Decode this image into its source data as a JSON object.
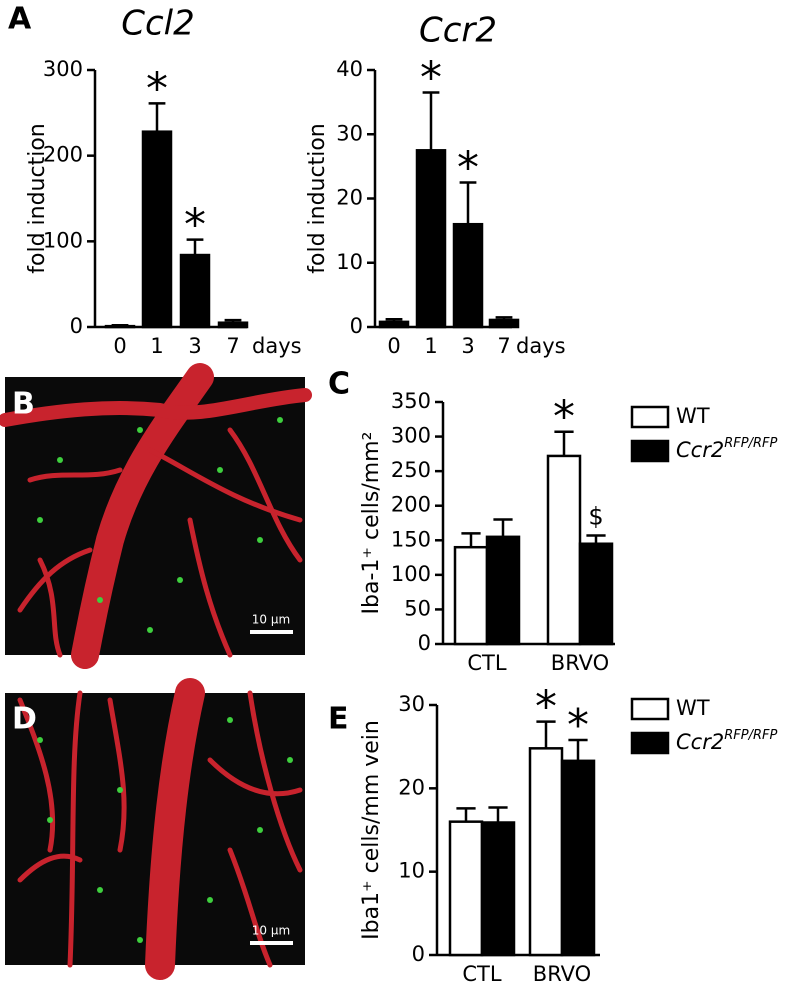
{
  "chart_data": [
    {
      "type": "bar",
      "panel_label": "A",
      "title": "Ccl2",
      "y_label": "fold induction",
      "x_label": "days",
      "categories": [
        "0",
        "1",
        "3",
        "7"
      ],
      "values": [
        1,
        228,
        84,
        5
      ],
      "errors": [
        1,
        33,
        18,
        3
      ],
      "color": "#000000",
      "markers": [
        null,
        "*",
        "*",
        null
      ],
      "ylim": [
        0,
        300
      ],
      "yticks": [
        0,
        100,
        200,
        300
      ]
    },
    {
      "type": "bar",
      "title": "Ccr2",
      "y_label": "fold induction",
      "x_label": "days",
      "categories": [
        "0",
        "1",
        "3",
        "7"
      ],
      "values": [
        0.8,
        27.5,
        16,
        1.1
      ],
      "errors": [
        0.4,
        9,
        6.5,
        0.4
      ],
      "color": "#000000",
      "markers": [
        null,
        "*",
        "*",
        null
      ],
      "ylim": [
        0,
        40
      ],
      "yticks": [
        0,
        10,
        20,
        30,
        40
      ]
    },
    {
      "type": "grouped_bar",
      "panel_label": "C",
      "y_label": "Iba-1⁺ cells/mm²",
      "categories": [
        "CTL",
        "BRVO"
      ],
      "series": [
        {
          "name": "WT",
          "color": "#ffffff",
          "values": [
            140,
            272
          ],
          "errors": [
            20,
            35
          ],
          "markers": [
            null,
            "*"
          ]
        },
        {
          "name": "Ccr2",
          "name_superscript": "RFP/RFP",
          "color": "#000000",
          "values": [
            155,
            145
          ],
          "errors": [
            25,
            12
          ],
          "markers": [
            null,
            "$"
          ]
        }
      ],
      "ylim": [
        0,
        350
      ],
      "yticks": [
        0,
        50,
        100,
        150,
        200,
        250,
        300,
        350
      ]
    },
    {
      "type": "grouped_bar",
      "panel_label": "E",
      "y_label": "Iba1⁺ cells/mm vein",
      "categories": [
        "CTL",
        "BRVO"
      ],
      "series": [
        {
          "name": "WT",
          "color": "#ffffff",
          "values": [
            16,
            24.8
          ],
          "errors": [
            1.6,
            3.2
          ],
          "markers": [
            null,
            "*"
          ]
        },
        {
          "name": "Ccr2",
          "name_superscript": "RFP/RFP",
          "color": "#000000",
          "values": [
            15.9,
            23.3
          ],
          "errors": [
            1.8,
            2.5
          ],
          "markers": [
            null,
            "*"
          ]
        }
      ],
      "ylim": [
        0,
        30
      ],
      "yticks": [
        0,
        10,
        20,
        30
      ]
    }
  ],
  "micrographs": [
    {
      "panel_label": "B",
      "scale_bar": "10 µm"
    },
    {
      "panel_label": "D",
      "scale_bar": "10 µm"
    }
  ]
}
